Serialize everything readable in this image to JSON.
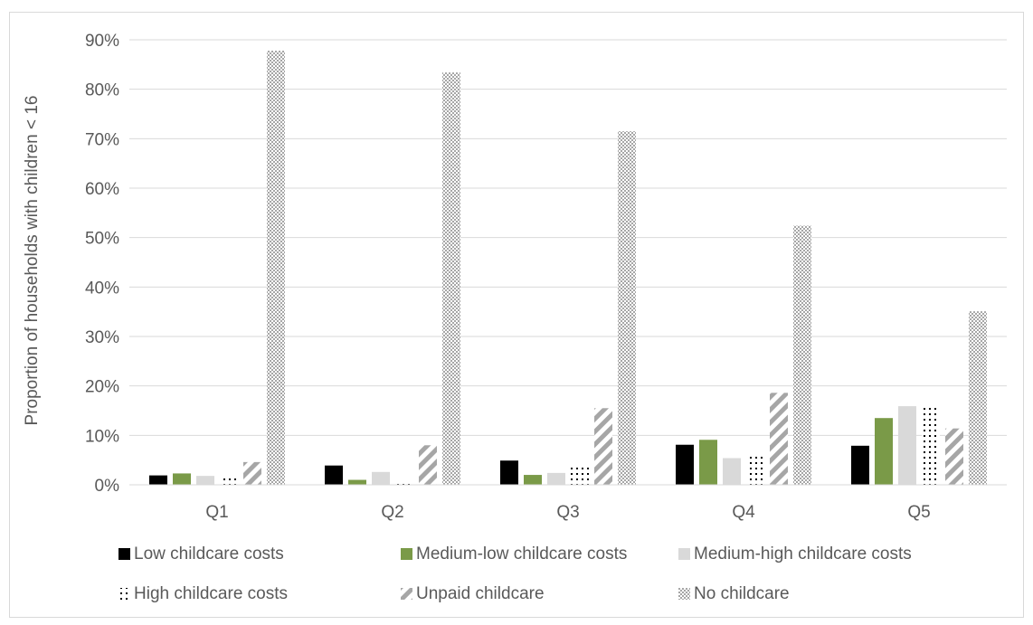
{
  "chart_data": {
    "type": "bar",
    "title": "",
    "xlabel": "",
    "ylabel": "Proportion of households with children < 16",
    "categories": [
      "Q1",
      "Q2",
      "Q3",
      "Q4",
      "Q5"
    ],
    "ylim": [
      0,
      0.9
    ],
    "yticks": [
      0,
      0.1,
      0.2,
      0.3,
      0.4,
      0.5,
      0.6,
      0.7,
      0.8,
      0.9
    ],
    "ytick_labels": [
      "0%",
      "10%",
      "20%",
      "30%",
      "40%",
      "50%",
      "60%",
      "70%",
      "80%",
      "90%"
    ],
    "grid": true,
    "legend_position": "bottom",
    "series": [
      {
        "name": "Low childcare costs",
        "pattern": "solid",
        "color": "#000000",
        "values": [
          0.019,
          0.039,
          0.049,
          0.081,
          0.079
        ]
      },
      {
        "name": "Medium-low childcare costs",
        "pattern": "solid",
        "color": "#7a9a48",
        "values": [
          0.023,
          0.01,
          0.02,
          0.091,
          0.135
        ]
      },
      {
        "name": "Medium-high childcare costs",
        "pattern": "solid",
        "color": "#d9d9d9",
        "values": [
          0.018,
          0.026,
          0.024,
          0.054,
          0.159
        ]
      },
      {
        "name": "High childcare costs",
        "pattern": "dots",
        "color": "#000000",
        "values": [
          0.014,
          0.009,
          0.035,
          0.061,
          0.159
        ]
      },
      {
        "name": "Unpaid childcare",
        "pattern": "diagonal",
        "color": "#a6a6a6",
        "values": [
          0.046,
          0.08,
          0.155,
          0.186,
          0.114
        ]
      },
      {
        "name": "No childcare",
        "pattern": "checker",
        "color": "#a6a6a6",
        "values": [
          0.878,
          0.834,
          0.715,
          0.524,
          0.351
        ]
      }
    ]
  }
}
